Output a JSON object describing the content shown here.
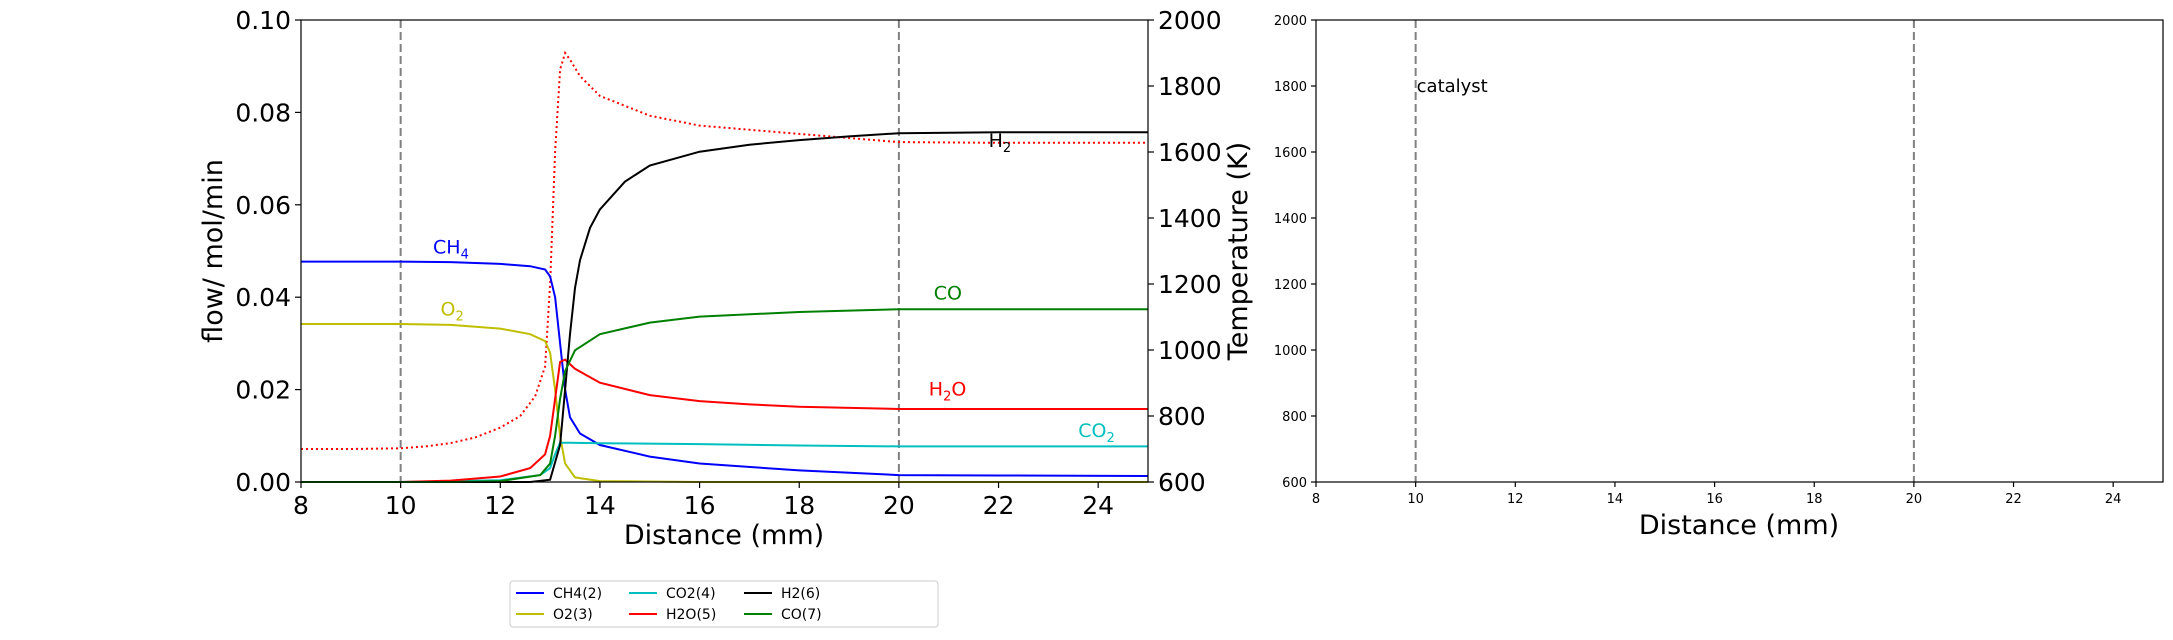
{
  "chart_data": [
    {
      "type": "line",
      "xlabel": "Distance (mm)",
      "ylabel": "flow/ mol/min",
      "y2label": "Temperature (K)",
      "xlim": [
        8,
        25
      ],
      "ylim": [
        0,
        0.1
      ],
      "y2lim": [
        600,
        2000
      ],
      "xticks": [
        "8",
        "10",
        "12",
        "14",
        "16",
        "18",
        "20",
        "22",
        "24"
      ],
      "yticks": [
        "0.00",
        "0.02",
        "0.04",
        "0.06",
        "0.08",
        "0.10"
      ],
      "y2ticks": [
        "600",
        "800",
        "1000",
        "1200",
        "1400",
        "1600",
        "1800",
        "2000"
      ],
      "vlines": [
        10,
        20
      ],
      "grid": false,
      "series": [
        {
          "name": "CH4(2)",
          "color": "#0000ff",
          "points": [
            [
              8,
              0.0477
            ],
            [
              10,
              0.0477
            ],
            [
              11,
              0.0476
            ],
            [
              12,
              0.0472
            ],
            [
              12.6,
              0.0467
            ],
            [
              12.9,
              0.046
            ],
            [
              13.0,
              0.0445
            ],
            [
              13.1,
              0.04
            ],
            [
              13.2,
              0.03
            ],
            [
              13.3,
              0.02
            ],
            [
              13.4,
              0.014
            ],
            [
              13.6,
              0.0105
            ],
            [
              14,
              0.008
            ],
            [
              15,
              0.0055
            ],
            [
              16,
              0.004
            ],
            [
              18,
              0.0025
            ],
            [
              20,
              0.0015
            ],
            [
              22,
              0.0014
            ],
            [
              25,
              0.0013
            ]
          ]
        },
        {
          "name": "O2(3)",
          "color": "#bfbf00",
          "points": [
            [
              8,
              0.0342
            ],
            [
              10,
              0.0342
            ],
            [
              11,
              0.034
            ],
            [
              12,
              0.0332
            ],
            [
              12.6,
              0.032
            ],
            [
              12.9,
              0.0305
            ],
            [
              13.0,
              0.028
            ],
            [
              13.1,
              0.02
            ],
            [
              13.2,
              0.01
            ],
            [
              13.3,
              0.004
            ],
            [
              13.5,
              0.001
            ],
            [
              14,
              0.0002
            ],
            [
              16,
              0.0
            ],
            [
              25,
              0.0
            ]
          ]
        },
        {
          "name": "CO2(4)",
          "color": "#00bfbf",
          "points": [
            [
              8,
              0.0
            ],
            [
              10,
              0.0
            ],
            [
              12,
              0.0004
            ],
            [
              12.8,
              0.0015
            ],
            [
              13.0,
              0.003
            ],
            [
              13.1,
              0.006
            ],
            [
              13.2,
              0.0085
            ],
            [
              13.4,
              0.0085
            ],
            [
              14,
              0.0084
            ],
            [
              16,
              0.0082
            ],
            [
              18,
              0.0079
            ],
            [
              20,
              0.0077
            ],
            [
              25,
              0.0077
            ]
          ]
        },
        {
          "name": "H2O(5)",
          "color": "#ff0000",
          "points": [
            [
              8,
              0.0
            ],
            [
              10,
              0.0
            ],
            [
              11,
              0.0003
            ],
            [
              12,
              0.0012
            ],
            [
              12.6,
              0.003
            ],
            [
              12.9,
              0.006
            ],
            [
              13.0,
              0.01
            ],
            [
              13.1,
              0.018
            ],
            [
              13.2,
              0.026
            ],
            [
              13.3,
              0.0265
            ],
            [
              13.5,
              0.0245
            ],
            [
              14,
              0.0215
            ],
            [
              15,
              0.0188
            ],
            [
              16,
              0.0175
            ],
            [
              17,
              0.0168
            ],
            [
              18,
              0.0163
            ],
            [
              20,
              0.0158
            ],
            [
              25,
              0.0158
            ]
          ]
        },
        {
          "name": "H2(6)",
          "color": "#000000",
          "points": [
            [
              8,
              0.0
            ],
            [
              12.6,
              0.0
            ],
            [
              13.0,
              0.0005
            ],
            [
              13.2,
              0.008
            ],
            [
              13.3,
              0.02
            ],
            [
              13.4,
              0.032
            ],
            [
              13.5,
              0.042
            ],
            [
              13.6,
              0.048
            ],
            [
              13.8,
              0.055
            ],
            [
              14,
              0.059
            ],
            [
              14.5,
              0.065
            ],
            [
              15,
              0.0685
            ],
            [
              16,
              0.0715
            ],
            [
              17,
              0.073
            ],
            [
              18,
              0.074
            ],
            [
              19,
              0.0748
            ],
            [
              20,
              0.0755
            ],
            [
              22,
              0.0757
            ],
            [
              25,
              0.0757
            ]
          ]
        },
        {
          "name": "CO(7)",
          "color": "#008000",
          "points": [
            [
              8,
              0.0
            ],
            [
              11,
              0.0
            ],
            [
              12,
              0.0002
            ],
            [
              12.8,
              0.0015
            ],
            [
              13.0,
              0.004
            ],
            [
              13.1,
              0.01
            ],
            [
              13.2,
              0.018
            ],
            [
              13.3,
              0.024
            ],
            [
              13.5,
              0.0285
            ],
            [
              14,
              0.032
            ],
            [
              15,
              0.0345
            ],
            [
              16,
              0.0358
            ],
            [
              18,
              0.0368
            ],
            [
              20,
              0.0374
            ],
            [
              25,
              0.0374
            ]
          ]
        }
      ],
      "temperature": {
        "color": "#ff0000",
        "points": [
          [
            8,
            700
          ],
          [
            9,
            700
          ],
          [
            10,
            702
          ],
          [
            10.5,
            708
          ],
          [
            11,
            718
          ],
          [
            11.5,
            735
          ],
          [
            12,
            765
          ],
          [
            12.4,
            800
          ],
          [
            12.7,
            860
          ],
          [
            12.9,
            950
          ],
          [
            13.0,
            1200
          ],
          [
            13.1,
            1600
          ],
          [
            13.2,
            1850
          ],
          [
            13.3,
            1900
          ],
          [
            13.4,
            1880
          ],
          [
            13.6,
            1830
          ],
          [
            14,
            1770
          ],
          [
            15,
            1710
          ],
          [
            16,
            1680
          ],
          [
            18,
            1655
          ],
          [
            20,
            1630
          ],
          [
            22,
            1628
          ],
          [
            25,
            1628
          ]
        ]
      },
      "annotations": [
        {
          "text": "CH",
          "sub": "4",
          "x": 10.65,
          "y": 0.0495,
          "color": "#0000ff"
        },
        {
          "text": "O",
          "sub": "2",
          "x": 10.8,
          "y": 0.036,
          "color": "#bfbf00"
        },
        {
          "text": "CO",
          "sub": "",
          "x": 20.7,
          "y": 0.0395,
          "color": "#008000"
        },
        {
          "text": "H",
          "sub": "2",
          "sub_tail": "O",
          "x": 20.6,
          "y": 0.0187,
          "color": "#ff0000"
        },
        {
          "text": "CO",
          "sub": "2",
          "x": 23.6,
          "y": 0.0097,
          "color": "#00bfbf"
        },
        {
          "text": "H",
          "sub": "2",
          "x": 21.8,
          "y": 0.0725,
          "color": "#000000"
        }
      ],
      "legend": {
        "placement": "below",
        "entries": [
          {
            "label": "CH4(2)",
            "color": "#0000ff"
          },
          {
            "label": "O2(3)",
            "color": "#bfbf00"
          },
          {
            "label": "CO2(4)",
            "color": "#00bfbf"
          },
          {
            "label": "H2O(5)",
            "color": "#ff0000"
          },
          {
            "label": "H2(6)",
            "color": "#000000"
          },
          {
            "label": "CO(7)",
            "color": "#008000"
          }
        ]
      }
    },
    {
      "type": "line",
      "xlabel": "Distance (mm)",
      "xlim": [
        8,
        25
      ],
      "ylim": [
        600,
        2000
      ],
      "xticks": [
        "8",
        "10",
        "12",
        "14",
        "16",
        "18",
        "20",
        "22",
        "24"
      ],
      "yticks": [
        "600",
        "800",
        "1000",
        "1200",
        "1400",
        "1600",
        "1800",
        "2000"
      ],
      "vlines": [
        10,
        20
      ],
      "grid": false,
      "annotations": [
        {
          "text": "catalyst",
          "x": 10.0,
          "y": 1800
        }
      ]
    }
  ]
}
